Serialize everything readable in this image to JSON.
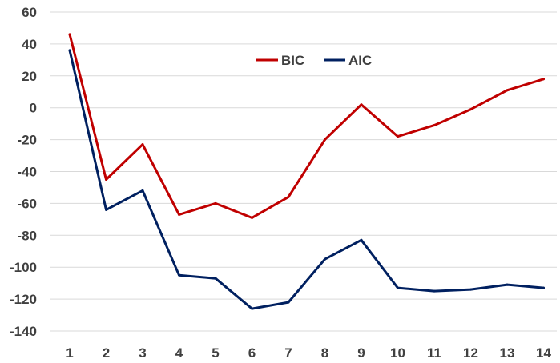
{
  "chart_data": {
    "type": "line",
    "x": [
      1,
      2,
      3,
      4,
      5,
      6,
      7,
      8,
      9,
      10,
      11,
      12,
      13,
      14
    ],
    "ylim": [
      -140,
      60
    ],
    "yticks": [
      60,
      40,
      20,
      0,
      -20,
      -40,
      -60,
      -80,
      -100,
      -120,
      -140
    ],
    "grid": true,
    "legend": "top-center",
    "series": [
      {
        "name": "BIC",
        "color": "#c00000",
        "values": [
          46,
          -45,
          -23,
          -67,
          -60,
          -69,
          -56,
          -20,
          2,
          -18,
          -11,
          -1,
          11,
          18
        ]
      },
      {
        "name": "AIC",
        "color": "#002060",
        "values": [
          36,
          -64,
          -52,
          -105,
          -107,
          -126,
          -122,
          -95,
          -83,
          -113,
          -115,
          -114,
          -111,
          -113
        ]
      }
    ]
  }
}
